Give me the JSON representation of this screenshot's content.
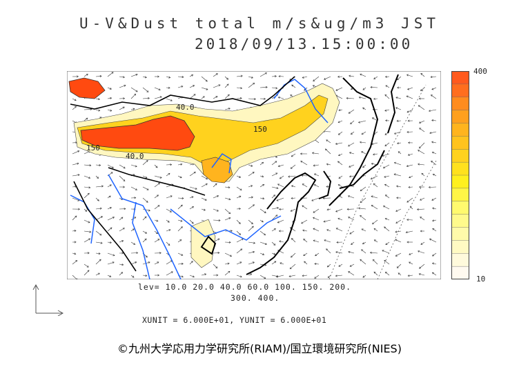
{
  "header": {
    "title": "U-V&Dust total m/s&ug/m3 JST",
    "datetime": "2018/09/13.15:00:00"
  },
  "colorbar": {
    "max_label": "400",
    "min_label": "10",
    "colors": [
      "#ff5a1e",
      "#ff6e1e",
      "#ff8c1e",
      "#ffa01e",
      "#ffb41e",
      "#ffc31e",
      "#ffd21e",
      "#ffe11e",
      "#fff01e",
      "#fff546",
      "#fffa6e",
      "#fffa8c",
      "#fffaaa",
      "#fffac3",
      "#fffadc",
      "#fffaf0"
    ]
  },
  "contours": {
    "labels": [
      "40.0",
      "150",
      "40.0",
      "150"
    ]
  },
  "legend": {
    "lev_line1": "lev= 10.0 20.0 40.0 60.0 100. 150. 200.",
    "lev_line2": "300. 400.",
    "units": "XUNIT = 6.000E+01, YUNIT = 6.000E+01"
  },
  "credit": "©九州大学応用力学研究所(RIAM)/国立環境研究所(NIES)",
  "map_colors": {
    "coast": "#000000",
    "rivers": "#1e64ff",
    "dust_high": "#ff4a10",
    "dust_mid": "#ffc81e",
    "dust_low": "#fff5b4"
  }
}
